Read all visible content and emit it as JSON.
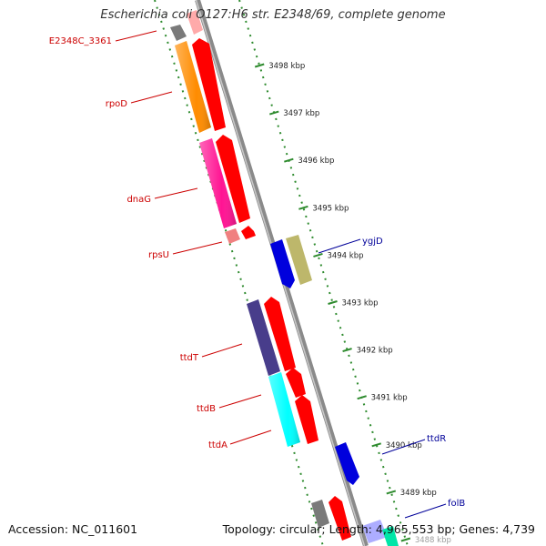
{
  "title": {
    "species": "Escherichia coli",
    "strain": "O127:H6 str. E2348/69, complete genome"
  },
  "footer": {
    "accession": "Accession: NC_011601",
    "summary": "Topology: circular; Length: 4,965,553 bp; Genes: 4,739"
  },
  "ruler": {
    "unit": "kbp",
    "ticks": [
      {
        "value": 3498,
        "label": "3498 kbp"
      },
      {
        "value": 3497,
        "label": "3497 kbp"
      },
      {
        "value": 3496,
        "label": "3496 kbp"
      },
      {
        "value": 3495,
        "label": "3495 kbp"
      },
      {
        "value": 3494,
        "label": "3494 kbp"
      },
      {
        "value": 3493,
        "label": "3493 kbp"
      },
      {
        "value": 3492,
        "label": "3492 kbp"
      },
      {
        "value": 3491,
        "label": "3491 kbp"
      },
      {
        "value": 3490,
        "label": "3490 kbp"
      },
      {
        "value": 3489,
        "label": "3489 kbp"
      },
      {
        "value": 3488,
        "label": "3488 kbp"
      }
    ]
  },
  "colors": {
    "backbone": "#8c8c8c",
    "ruler_ticks": "#2e8b2e",
    "left_label": "#cc0000",
    "right_label": "#000099",
    "cds_track": "#ff0000",
    "reverse_track": "#0000dd"
  },
  "labels": {
    "left": [
      {
        "name": "E2348C_3361",
        "color": "#cc0000"
      },
      {
        "name": "rpoD",
        "color": "#cc0000"
      },
      {
        "name": "dnaG",
        "color": "#cc0000"
      },
      {
        "name": "rpsU",
        "color": "#cc0000"
      },
      {
        "name": "ttdT",
        "color": "#cc0000"
      },
      {
        "name": "ttdB",
        "color": "#cc0000"
      },
      {
        "name": "ttdA",
        "color": "#cc0000"
      }
    ],
    "right": [
      {
        "name": "ygjD",
        "color": "#000099"
      },
      {
        "name": "ttdR",
        "color": "#000099"
      },
      {
        "name": "folB",
        "color": "#000099"
      }
    ]
  },
  "features": [
    {
      "name": "E2348C_3361",
      "track": "gene",
      "color": "#808080"
    },
    {
      "name": "rpoD",
      "track": "gene",
      "color": "#ff8c00"
    },
    {
      "name": "dnaG",
      "track": "gene",
      "color": "#ff1493"
    },
    {
      "name": "rpsU",
      "track": "gene",
      "color": "#f08080"
    },
    {
      "name": "ttdT",
      "track": "gene",
      "color": "#483d8b"
    },
    {
      "name": "ttdB",
      "track": "gene",
      "color": "#00ffff"
    },
    {
      "name": "ttdA",
      "track": "gene",
      "color": "#00ffff"
    },
    {
      "name": "ygjD",
      "track": "gene",
      "color": "#bdb76b"
    },
    {
      "name": "CDS forward",
      "track": "cds",
      "color": "#ff0000"
    },
    {
      "name": "CDS reverse",
      "track": "cds",
      "color": "#0000dd"
    }
  ]
}
